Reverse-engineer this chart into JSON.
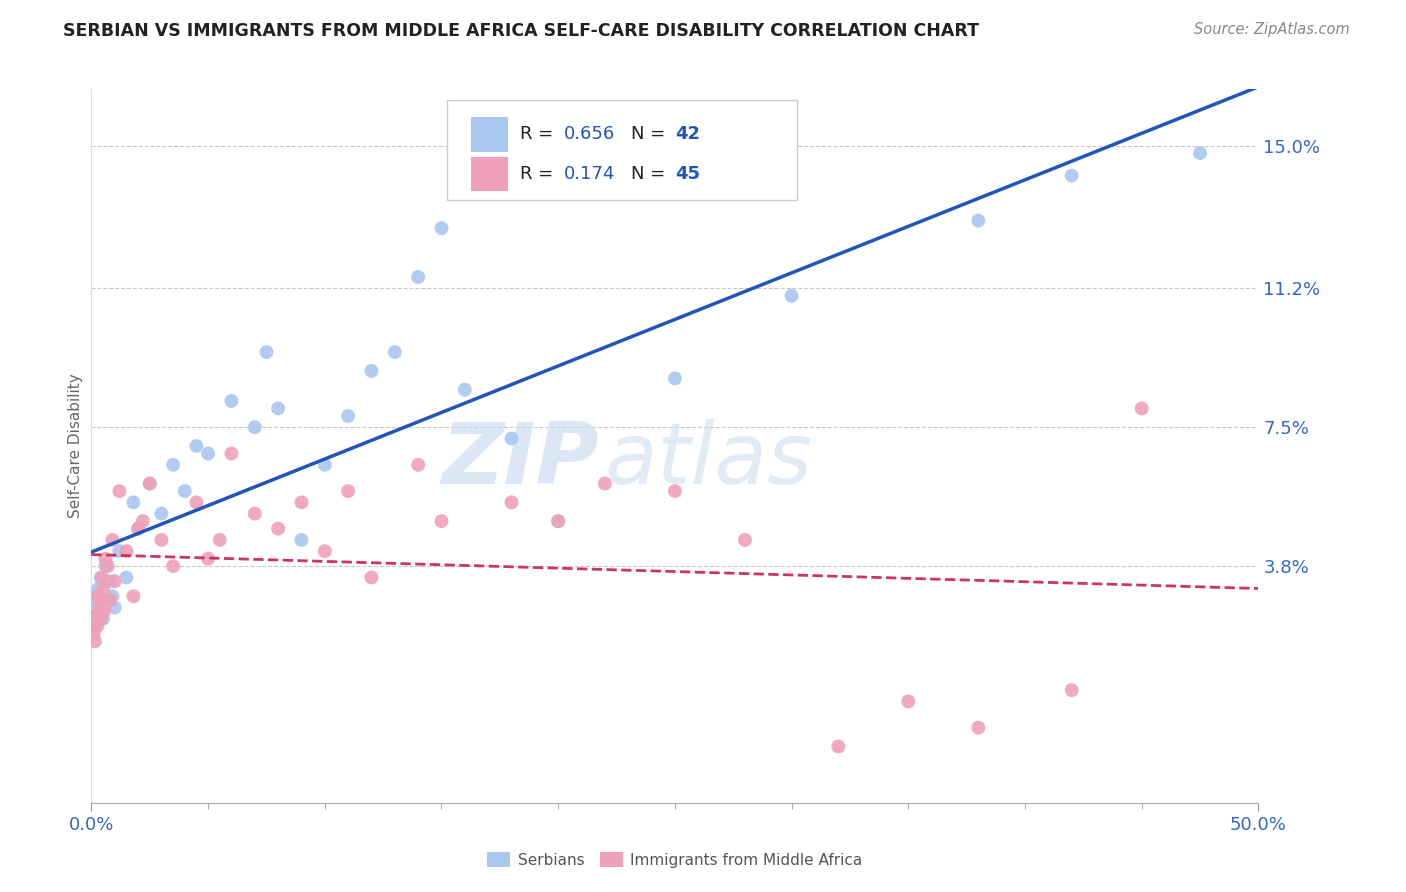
{
  "title": "SERBIAN VS IMMIGRANTS FROM MIDDLE AFRICA SELF-CARE DISABILITY CORRELATION CHART",
  "source": "Source: ZipAtlas.com",
  "ylabel": "Self-Care Disability",
  "xlim": [
    0.0,
    50.0
  ],
  "ylim": [
    -2.5,
    16.5
  ],
  "ytick_vals": [
    3.8,
    7.5,
    11.2,
    15.0
  ],
  "ytick_labels": [
    "3.8%",
    "7.5%",
    "11.2%",
    "15.0%"
  ],
  "xtick_vals": [
    0.0,
    50.0
  ],
  "xtick_labels": [
    "0.0%",
    "50.0%"
  ],
  "series1_label": "Serbians",
  "series1_color": "#a8c8f0",
  "series1_line_color": "#2255bb",
  "series1_R": "0.656",
  "series1_N": "42",
  "series2_label": "Immigrants from Middle Africa",
  "series2_color": "#f0a0b8",
  "series2_line_color": "#cc3366",
  "series2_R": "0.174",
  "series2_N": "45",
  "series1_x": [
    0.1,
    0.15,
    0.2,
    0.25,
    0.3,
    0.35,
    0.4,
    0.5,
    0.6,
    0.7,
    0.8,
    0.9,
    1.0,
    1.2,
    1.5,
    1.8,
    2.0,
    2.5,
    3.0,
    3.5,
    4.0,
    4.5,
    5.0,
    6.0,
    7.0,
    7.5,
    8.0,
    9.0,
    10.0,
    11.0,
    12.0,
    13.0,
    14.0,
    15.0,
    16.0,
    18.0,
    20.0,
    25.0,
    30.0,
    38.0,
    42.0,
    47.5
  ],
  "series1_y": [
    2.2,
    2.5,
    3.0,
    2.8,
    3.2,
    2.6,
    3.5,
    2.4,
    3.8,
    2.9,
    3.4,
    3.0,
    2.7,
    4.2,
    3.5,
    5.5,
    4.8,
    6.0,
    5.2,
    6.5,
    5.8,
    7.0,
    6.8,
    8.2,
    7.5,
    9.5,
    8.0,
    4.5,
    6.5,
    7.8,
    9.0,
    9.5,
    11.5,
    12.8,
    8.5,
    7.2,
    5.0,
    8.8,
    11.0,
    13.0,
    14.2,
    14.8
  ],
  "series2_x": [
    0.1,
    0.15,
    0.2,
    0.25,
    0.3,
    0.35,
    0.4,
    0.45,
    0.5,
    0.55,
    0.6,
    0.7,
    0.8,
    0.9,
    1.0,
    1.2,
    1.5,
    1.8,
    2.0,
    2.2,
    2.5,
    3.0,
    3.5,
    4.5,
    5.0,
    5.5,
    6.0,
    7.0,
    8.0,
    9.0,
    10.0,
    11.0,
    12.0,
    14.0,
    15.0,
    18.0,
    20.0,
    22.0,
    25.0,
    28.0,
    32.0,
    35.0,
    38.0,
    42.0,
    45.0
  ],
  "series2_y": [
    2.0,
    1.8,
    2.5,
    2.2,
    3.0,
    2.8,
    2.4,
    3.5,
    3.2,
    2.6,
    4.0,
    3.8,
    2.9,
    4.5,
    3.4,
    5.8,
    4.2,
    3.0,
    4.8,
    5.0,
    6.0,
    4.5,
    3.8,
    5.5,
    4.0,
    4.5,
    6.8,
    5.2,
    4.8,
    5.5,
    4.2,
    5.8,
    3.5,
    6.5,
    5.0,
    5.5,
    5.0,
    6.0,
    5.8,
    4.5,
    -1.0,
    0.2,
    -0.5,
    0.5,
    8.0
  ],
  "background_color": "#ffffff",
  "grid_color": "#bbbbbb",
  "watermark_text": "ZIP",
  "watermark_text2": "atlas",
  "legend_text_color": "#333333",
  "legend_val_color": "#2255bb",
  "axis_tick_color": "#3366cc"
}
